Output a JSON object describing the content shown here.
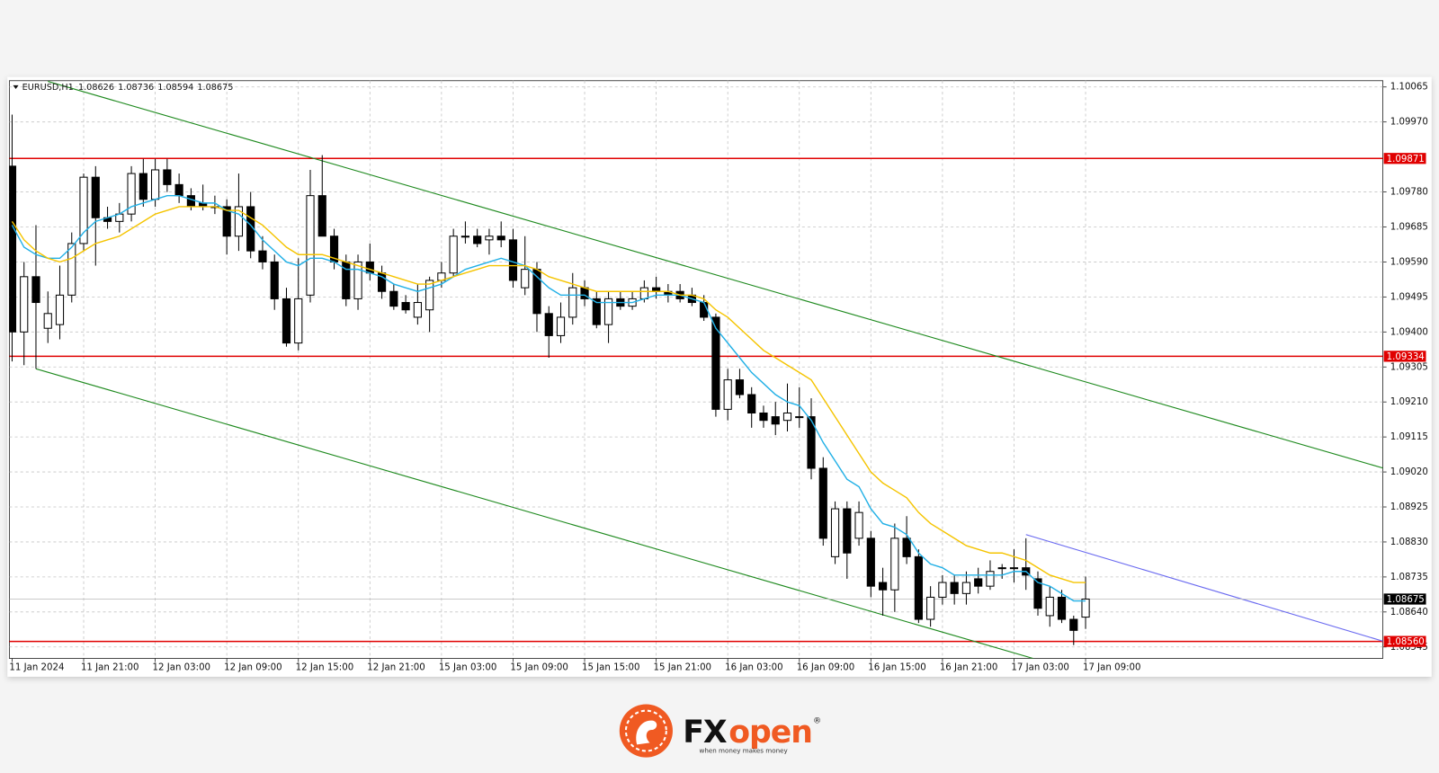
{
  "chart_data": {
    "type": "candlestick",
    "symbol": "EURUSD,H1",
    "categories": [
      "11 Jan 2024",
      null,
      null,
      null,
      null,
      null,
      "11 Jan 21:00",
      null,
      null,
      null,
      null,
      null,
      "12 Jan 03:00",
      null,
      null,
      null,
      null,
      null,
      "12 Jan 09:00",
      null,
      null,
      null,
      null,
      null,
      "12 Jan 15:00",
      null,
      null,
      null,
      null,
      null,
      "12 Jan 21:00",
      null,
      null,
      null,
      null,
      null,
      "15 Jan 03:00",
      null,
      null,
      null,
      null,
      null,
      "15 Jan 09:00",
      null,
      null,
      null,
      null,
      null,
      "15 Jan 15:00",
      null,
      null,
      null,
      null,
      null,
      "15 Jan 21:00",
      null,
      null,
      null,
      null,
      null,
      "16 Jan 03:00",
      null,
      null,
      null,
      null,
      null,
      "16 Jan 09:00",
      null,
      null,
      null,
      null,
      null,
      "16 Jan 15:00",
      null,
      null,
      null,
      null,
      null,
      "16 Jan 21:00",
      null,
      null,
      null,
      null,
      null,
      "17 Jan 03:00",
      null,
      null,
      null,
      null,
      null,
      "17 Jan 09:00"
    ],
    "open": [
      1.0985,
      1.094,
      1.0955,
      1.0941,
      1.0942,
      1.095,
      1.0964,
      1.0982,
      1.0971,
      1.097,
      1.0972,
      1.0983,
      1.0976,
      1.0984,
      1.098,
      1.0977,
      1.0975,
      1.0974,
      1.0974,
      1.0966,
      1.0974,
      1.0962,
      1.0959,
      1.0949,
      1.0937,
      1.095,
      1.0977,
      1.0966,
      1.0959,
      1.0949,
      1.0959,
      1.0956,
      1.0951,
      1.0948,
      1.0944,
      1.0946,
      1.0954,
      1.0956,
      1.0966,
      1.0966,
      1.0965,
      1.0966,
      1.0965,
      1.0952,
      1.0957,
      1.0945,
      1.0939,
      1.0944,
      1.0952,
      1.0949,
      1.0942,
      1.0949,
      1.0947,
      1.0949,
      1.0952,
      1.0951,
      1.0951,
      1.095,
      1.0948,
      1.0944,
      1.0919,
      1.0927,
      1.0923,
      1.0918,
      1.0917,
      1.0916,
      1.0917,
      1.0917,
      1.0903,
      1.0879,
      1.0892,
      1.0884,
      1.0884,
      1.0872,
      1.087,
      1.0884,
      1.0879,
      1.0862,
      1.0868,
      1.0872,
      1.0869,
      1.0873,
      1.0871,
      1.0876,
      1.0876,
      1.0876,
      1.0873,
      1.0863,
      1.0868,
      1.0862,
      1.08626
    ],
    "high": [
      1.0999,
      1.0959,
      1.0969,
      1.0951,
      1.0958,
      1.0967,
      1.0983,
      1.0985,
      1.0974,
      1.0975,
      1.0985,
      1.0987,
      1.0987,
      1.0987,
      1.0983,
      1.0979,
      1.098,
      1.0977,
      1.0976,
      1.0983,
      1.0978,
      1.0966,
      1.0961,
      1.0952,
      1.096,
      1.0984,
      1.0988,
      1.0968,
      1.0961,
      1.0961,
      1.0964,
      1.0958,
      1.0953,
      1.095,
      1.0953,
      1.0955,
      1.0959,
      1.0968,
      1.097,
      1.0968,
      1.0968,
      1.097,
      1.0968,
      1.0966,
      1.0959,
      1.0947,
      1.0948,
      1.0956,
      1.0954,
      1.0951,
      1.0951,
      1.0951,
      1.0951,
      1.0954,
      1.0955,
      1.0953,
      1.0953,
      1.0952,
      1.095,
      1.0945,
      1.093,
      1.093,
      1.0925,
      1.092,
      1.0921,
      1.0926,
      1.0925,
      1.0922,
      1.0906,
      1.0894,
      1.0894,
      1.0894,
      1.0886,
      1.0876,
      1.0888,
      1.089,
      1.0881,
      1.0871,
      1.0874,
      1.0874,
      1.0875,
      1.0876,
      1.0878,
      1.0877,
      1.0881,
      1.0884,
      1.0875,
      1.0871,
      1.087,
      1.0863,
      1.08736
    ],
    "low": [
      1.0932,
      1.0931,
      1.093,
      1.0937,
      1.0938,
      1.0948,
      1.0962,
      1.0958,
      1.0968,
      1.0967,
      1.097,
      1.0974,
      1.0974,
      1.0978,
      1.0975,
      1.0973,
      1.0973,
      1.0972,
      1.0961,
      1.0962,
      1.096,
      1.0957,
      1.0946,
      1.0936,
      1.0935,
      1.0948,
      1.0966,
      1.0957,
      1.0947,
      1.0946,
      1.0954,
      1.0949,
      1.0946,
      1.0945,
      1.0942,
      1.094,
      1.0952,
      1.0955,
      1.0964,
      1.0963,
      1.0961,
      1.0963,
      1.0952,
      1.095,
      1.094,
      1.0933,
      1.0937,
      1.0942,
      1.0947,
      1.0941,
      1.0937,
      1.0946,
      1.0946,
      1.0948,
      1.0949,
      1.0948,
      1.0948,
      1.0947,
      1.0943,
      1.0917,
      1.0916,
      1.0922,
      1.0914,
      1.0914,
      1.0912,
      1.0913,
      1.0914,
      1.09,
      1.0882,
      1.0877,
      1.0873,
      1.0882,
      1.0868,
      1.0863,
      1.0864,
      1.0877,
      1.0861,
      1.086,
      1.0866,
      1.0866,
      1.0866,
      1.0869,
      1.087,
      1.0873,
      1.0872,
      1.087,
      1.0863,
      1.086,
      1.0861,
      1.0855,
      1.08594
    ],
    "close": [
      1.094,
      1.0955,
      1.0948,
      1.0945,
      1.095,
      1.0964,
      1.0982,
      1.0971,
      1.097,
      1.0972,
      1.0983,
      1.0976,
      1.0984,
      1.098,
      1.0977,
      1.0974,
      1.0974,
      1.0974,
      1.0966,
      1.0974,
      1.0962,
      1.0959,
      1.0949,
      1.0937,
      1.0949,
      1.0977,
      1.0966,
      1.0959,
      1.0949,
      1.0959,
      1.0956,
      1.0951,
      1.0947,
      1.0946,
      1.0948,
      1.0954,
      1.0956,
      1.0966,
      1.0966,
      1.0964,
      1.0966,
      1.0965,
      1.0954,
      1.0957,
      1.0945,
      1.0939,
      1.0944,
      1.0952,
      1.0949,
      1.0942,
      1.0949,
      1.0947,
      1.0949,
      1.0952,
      1.0951,
      1.095,
      1.0949,
      1.0948,
      1.0944,
      1.0919,
      1.0927,
      1.0923,
      1.0918,
      1.0916,
      1.0915,
      1.0918,
      1.0917,
      1.0903,
      1.0884,
      1.0892,
      1.088,
      1.0891,
      1.0871,
      1.087,
      1.0884,
      1.0879,
      1.0862,
      1.0868,
      1.0872,
      1.0869,
      1.0872,
      1.0871,
      1.0875,
      1.0876,
      1.0876,
      1.0874,
      1.0865,
      1.0868,
      1.0862,
      1.0859,
      1.08675
    ],
    "up_color": "#ffffff",
    "down_color": "#000000",
    "series": [
      {
        "color": "#22b0e6",
        "values": [
          1.0969,
          1.0963,
          1.0961,
          1.096,
          1.096,
          1.0963,
          1.0967,
          1.097,
          1.0971,
          1.0972,
          1.0974,
          1.0975,
          1.0976,
          1.0977,
          1.0977,
          1.0976,
          1.0975,
          1.0975,
          1.0973,
          1.0972,
          1.0969,
          1.0965,
          1.0962,
          1.0959,
          1.0958,
          1.096,
          1.096,
          1.0959,
          1.0957,
          1.0957,
          1.0956,
          1.0955,
          1.0953,
          1.0952,
          1.0951,
          1.0952,
          1.0953,
          1.0955,
          1.0957,
          1.0958,
          1.0959,
          1.096,
          1.0959,
          1.0958,
          1.0955,
          1.0952,
          1.095,
          1.095,
          1.095,
          1.0948,
          1.0948,
          1.0948,
          1.0948,
          1.0949,
          1.095,
          1.095,
          1.095,
          1.0949,
          1.0948,
          1.0941,
          1.0937,
          1.0933,
          1.0929,
          1.0926,
          1.0923,
          1.0921,
          1.092,
          1.0916,
          1.091,
          1.0905,
          1.09,
          1.0898,
          1.0892,
          1.0888,
          1.0887,
          1.0885,
          1.088,
          1.0877,
          1.0876,
          1.0874,
          1.0874,
          1.0874,
          1.0874,
          1.0874,
          1.0875,
          1.0875,
          1.0872,
          1.0871,
          1.0869,
          1.0867,
          1.0867
        ]
      },
      {
        "color": "#f5c400",
        "values": [
          1.097,
          1.0965,
          1.0962,
          1.096,
          1.0959,
          1.096,
          1.0962,
          1.0964,
          1.0965,
          1.0966,
          1.0968,
          1.097,
          1.0972,
          1.0973,
          1.0974,
          1.0974,
          1.0974,
          1.0974,
          1.0973,
          1.0973,
          1.0971,
          1.0969,
          1.0966,
          1.0963,
          1.0961,
          1.0961,
          1.0961,
          1.096,
          1.0959,
          1.0958,
          1.0957,
          1.0956,
          1.0955,
          1.0954,
          1.0953,
          1.0953,
          1.0954,
          1.0955,
          1.0956,
          1.0957,
          1.0958,
          1.0958,
          1.0958,
          1.0958,
          1.0957,
          1.0955,
          1.0954,
          1.0953,
          1.0952,
          1.0951,
          1.0951,
          1.0951,
          1.0951,
          1.0951,
          1.0951,
          1.0951,
          1.095,
          1.095,
          1.0949,
          1.0946,
          1.0944,
          1.0941,
          1.0938,
          1.0935,
          1.0933,
          1.0931,
          1.0929,
          1.0927,
          1.0922,
          1.0917,
          1.0912,
          1.0907,
          1.0902,
          1.0899,
          1.0897,
          1.0895,
          1.0891,
          1.0888,
          1.0886,
          1.0884,
          1.0882,
          1.0881,
          1.088,
          1.088,
          1.0879,
          1.0878,
          1.0876,
          1.0874,
          1.0873,
          1.0872,
          1.0872
        ]
      }
    ],
    "levels": [
      1.09871,
      1.09334,
      {
        "value": 1.0856,
        "label": "1.08560"
      }
    ],
    "level_color": "#e00000",
    "trendlines": [
      {
        "color": "#1f8a1f",
        "points": [
          [
            3,
            1.1008
          ],
          [
            115,
            1.0903
          ]
        ]
      },
      {
        "color": "#1f8a1f",
        "points": [
          [
            2,
            1.093
          ],
          [
            86,
            1.0851
          ]
        ]
      },
      {
        "color": "#6a6af0",
        "points": [
          [
            85,
            1.0885
          ],
          [
            115,
            1.0856
          ]
        ]
      }
    ],
    "ylim": [
      1.08514,
      1.10082
    ],
    "yticks": [
      1.10065,
      {
        "value": 1.0997,
        "label": "1.09970"
      },
      {
        "value": 1.0978,
        "label": "1.09780"
      },
      1.09685,
      {
        "value": 1.0959,
        "label": "1.09590"
      },
      1.09495,
      {
        "value": 1.094,
        "label": "1.09400"
      },
      1.09305,
      {
        "value": 1.0921,
        "label": "1.09210"
      },
      1.09115,
      {
        "value": 1.0902,
        "label": "1.09020"
      },
      1.08925,
      {
        "value": 1.0883,
        "label": "1.08830"
      },
      1.08735,
      {
        "value": 1.0864,
        "label": "1.08640"
      },
      1.08545
    ],
    "grid": true
  },
  "logo": {
    "brand_fx": "FX",
    "brand_open": "open",
    "registered": "®",
    "tagline": "when money makes money"
  }
}
